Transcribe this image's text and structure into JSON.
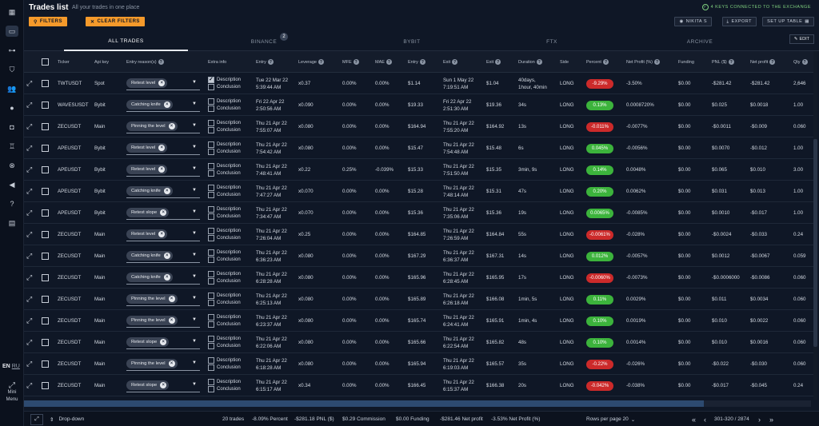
{
  "header": {
    "title": "Trades list",
    "subtitle": "All your trades in one place",
    "filters_label": "FILTERS",
    "clear_filters_label": "CLEAR FILTERS",
    "keys_status": "4 KEYS CONNECTED TO THE EXCHANGE",
    "user_label": "NIKITA S",
    "export_label": "EXPORT",
    "setup_table_label": "SET UP TABLE"
  },
  "tabs": [
    {
      "label": "ALL TRADES",
      "active": true
    },
    {
      "label": "BINANCE",
      "badge": "2"
    },
    {
      "label": "BYBIT"
    },
    {
      "label": "FTX"
    },
    {
      "label": "ARCHIVE"
    }
  ],
  "edit_label": "EDIT",
  "columns": [
    "Ticker",
    "Api key",
    "Entry reason(s)",
    "Extra info",
    "Entry",
    "Leverage",
    "MFE",
    "MAE",
    "Entry",
    "Exit",
    "Exit",
    "Duration",
    "Side",
    "Percent",
    "Net Profit (%)",
    "Funding",
    "PNL ($)",
    "Net profit",
    "Qty"
  ],
  "extra_labels": {
    "description": "Description",
    "conclusion": "Conclusion"
  },
  "rows": [
    {
      "ticker": "TWTUSDT",
      "api": "Spot",
      "reason": "Retest level",
      "desc_checked": true,
      "entry_date": "Tue 22 Mar 22",
      "entry_time": "5:39:44 AM",
      "leverage": "x0.37",
      "mfe": "0.00%",
      "mae": "0.00%",
      "entry_price": "$1.14",
      "exit_date": "Sun 1 May 22",
      "exit_time": "7:19:51 AM",
      "exit_price": "$1.04",
      "duration": "40days,",
      "duration2": "1hour, 40min",
      "side": "LONG",
      "percent": "-9.29%",
      "neg": true,
      "net_pct": "-3.50%",
      "funding": "$0.00",
      "pnl": "-$281.42",
      "net_profit": "-$281.42",
      "qty": "2,646"
    },
    {
      "ticker": "WAVESUSDT",
      "api": "Bybit",
      "reason": "Catching knife",
      "desc_checked": false,
      "entry_date": "Fri 22 Apr 22",
      "entry_time": "2:50:56 AM",
      "leverage": "x0.090",
      "mfe": "0.00%",
      "mae": "0.00%",
      "entry_price": "$19.33",
      "exit_date": "Fri 22 Apr 22",
      "exit_time": "2:51:30 AM",
      "exit_price": "$19.36",
      "duration": "34s",
      "duration2": "",
      "side": "LONG",
      "percent": "0.13%",
      "neg": false,
      "net_pct": "0.0008720%",
      "funding": "$0.00",
      "pnl": "$0.025",
      "net_profit": "$0.0018",
      "qty": "1.00"
    },
    {
      "ticker": "ZECUSDT",
      "api": "Main",
      "reason": "Pinning the level",
      "desc_checked": false,
      "entry_date": "Thu 21 Apr 22",
      "entry_time": "7:55:07 AM",
      "leverage": "x0.080",
      "mfe": "0.00%",
      "mae": "0.00%",
      "entry_price": "$164.94",
      "exit_date": "Thu 21 Apr 22",
      "exit_time": "7:55:20 AM",
      "exit_price": "$164.92",
      "duration": "13s",
      "duration2": "",
      "side": "LONG",
      "percent": "-0.011%",
      "neg": true,
      "net_pct": "-0.0077%",
      "funding": "$0.00",
      "pnl": "-$0.0011",
      "net_profit": "-$0.009",
      "qty": "0.060"
    },
    {
      "ticker": "APEUSDT",
      "api": "Bybit",
      "reason": "Retest level",
      "desc_checked": false,
      "entry_date": "Thu 21 Apr 22",
      "entry_time": "7:54:42 AM",
      "leverage": "x0.080",
      "mfe": "0.00%",
      "mae": "0.00%",
      "entry_price": "$15.47",
      "exit_date": "Thu 21 Apr 22",
      "exit_time": "7:54:48 AM",
      "exit_price": "$15.48",
      "duration": "6s",
      "duration2": "",
      "side": "LONG",
      "percent": "0.045%",
      "neg": false,
      "net_pct": "-0.0056%",
      "funding": "$0.00",
      "pnl": "$0.0070",
      "net_profit": "-$0.012",
      "qty": "1.00"
    },
    {
      "ticker": "APEUSDT",
      "api": "Bybit",
      "reason": "Retest level",
      "desc_checked": false,
      "entry_date": "Thu 21 Apr 22",
      "entry_time": "7:48:41 AM",
      "leverage": "x0.22",
      "mfe": "0.25%",
      "mae": "-0.039%",
      "entry_price": "$15.33",
      "exit_date": "Thu 21 Apr 22",
      "exit_time": "7:51:50 AM",
      "exit_price": "$15.35",
      "duration": "3min, 9s",
      "duration2": "",
      "side": "LONG",
      "percent": "0.14%",
      "neg": false,
      "net_pct": "0.0048%",
      "funding": "$0.00",
      "pnl": "$0.065",
      "net_profit": "$0.010",
      "qty": "3.00"
    },
    {
      "ticker": "APEUSDT",
      "api": "Bybit",
      "reason": "Catching knife",
      "desc_checked": false,
      "entry_date": "Thu 21 Apr 22",
      "entry_time": "7:47:27 AM",
      "leverage": "x0.070",
      "mfe": "0.00%",
      "mae": "0.00%",
      "entry_price": "$15.28",
      "exit_date": "Thu 21 Apr 22",
      "exit_time": "7:48:14 AM",
      "exit_price": "$15.31",
      "duration": "47s",
      "duration2": "",
      "side": "LONG",
      "percent": "0.20%",
      "neg": false,
      "net_pct": "0.0062%",
      "funding": "$0.00",
      "pnl": "$0.031",
      "net_profit": "$0.013",
      "qty": "1.00"
    },
    {
      "ticker": "APEUSDT",
      "api": "Bybit",
      "reason": "Retest slope",
      "desc_checked": false,
      "entry_date": "Thu 21 Apr 22",
      "entry_time": "7:34:47 AM",
      "leverage": "x0.070",
      "mfe": "0.00%",
      "mae": "0.00%",
      "entry_price": "$15.36",
      "exit_date": "Thu 21 Apr 22",
      "exit_time": "7:35:06 AM",
      "exit_price": "$15.36",
      "duration": "19s",
      "duration2": "",
      "side": "LONG",
      "percent": "0.0065%",
      "neg": false,
      "net_pct": "-0.0085%",
      "funding": "$0.00",
      "pnl": "$0.0010",
      "net_profit": "-$0.017",
      "qty": "1.00"
    },
    {
      "ticker": "ZECUSDT",
      "api": "Main",
      "reason": "Retest level",
      "desc_checked": false,
      "entry_date": "Thu 21 Apr 22",
      "entry_time": "7:26:04 AM",
      "leverage": "x0.25",
      "mfe": "0.00%",
      "mae": "0.00%",
      "entry_price": "$164.85",
      "exit_date": "Thu 21 Apr 22",
      "exit_time": "7:26:59 AM",
      "exit_price": "$164.84",
      "duration": "55s",
      "duration2": "",
      "side": "LONG",
      "percent": "-0.0061%",
      "neg": true,
      "net_pct": "-0.028%",
      "funding": "$0.00",
      "pnl": "-$0.0024",
      "net_profit": "-$0.033",
      "qty": "0.24"
    },
    {
      "ticker": "ZECUSDT",
      "api": "Main",
      "reason": "Catching knife",
      "desc_checked": false,
      "entry_date": "Thu 21 Apr 22",
      "entry_time": "6:36:23 AM",
      "leverage": "x0.080",
      "mfe": "0.00%",
      "mae": "0.00%",
      "entry_price": "$167.29",
      "exit_date": "Thu 21 Apr 22",
      "exit_time": "6:36:37 AM",
      "exit_price": "$167.31",
      "duration": "14s",
      "duration2": "",
      "side": "LONG",
      "percent": "0.012%",
      "neg": false,
      "net_pct": "-0.0057%",
      "funding": "$0.00",
      "pnl": "$0.0012",
      "net_profit": "-$0.0067",
      "qty": "0.059"
    },
    {
      "ticker": "ZECUSDT",
      "api": "Main",
      "reason": "Catching knife",
      "desc_checked": false,
      "entry_date": "Thu 21 Apr 22",
      "entry_time": "6:28:28 AM",
      "leverage": "x0.080",
      "mfe": "0.00%",
      "mae": "0.00%",
      "entry_price": "$165.96",
      "exit_date": "Thu 21 Apr 22",
      "exit_time": "6:28:45 AM",
      "exit_price": "$165.95",
      "duration": "17s",
      "duration2": "",
      "side": "LONG",
      "percent": "-0.0060%",
      "neg": true,
      "net_pct": "-0.0073%",
      "funding": "$0.00",
      "pnl": "-$0.0006000",
      "net_profit": "-$0.0086",
      "qty": "0.060"
    },
    {
      "ticker": "ZECUSDT",
      "api": "Main",
      "reason": "Pinning the level",
      "desc_checked": false,
      "entry_date": "Thu 21 Apr 22",
      "entry_time": "6:25:13 AM",
      "leverage": "x0.080",
      "mfe": "0.00%",
      "mae": "0.00%",
      "entry_price": "$165.89",
      "exit_date": "Thu 21 Apr 22",
      "exit_time": "6:26:18 AM",
      "exit_price": "$166.08",
      "duration": "1min, 5s",
      "duration2": "",
      "side": "LONG",
      "percent": "0.11%",
      "neg": false,
      "net_pct": "0.0029%",
      "funding": "$0.00",
      "pnl": "$0.011",
      "net_profit": "$0.0034",
      "qty": "0.060"
    },
    {
      "ticker": "ZECUSDT",
      "api": "Main",
      "reason": "Pinning the level",
      "desc_checked": false,
      "entry_date": "Thu 21 Apr 22",
      "entry_time": "6:23:37 AM",
      "leverage": "x0.080",
      "mfe": "0.00%",
      "mae": "0.00%",
      "entry_price": "$165.74",
      "exit_date": "Thu 21 Apr 22",
      "exit_time": "6:24:41 AM",
      "exit_price": "$165.91",
      "duration": "1min, 4s",
      "duration2": "",
      "side": "LONG",
      "percent": "0.10%",
      "neg": false,
      "net_pct": "0.0019%",
      "funding": "$0.00",
      "pnl": "$0.010",
      "net_profit": "$0.0022",
      "qty": "0.060"
    },
    {
      "ticker": "ZECUSDT",
      "api": "Main",
      "reason": "Retest slope",
      "desc_checked": false,
      "entry_date": "Thu 21 Apr 22",
      "entry_time": "6:22:06 AM",
      "leverage": "x0.080",
      "mfe": "0.00%",
      "mae": "0.00%",
      "entry_price": "$165.66",
      "exit_date": "Thu 21 Apr 22",
      "exit_time": "6:22:54 AM",
      "exit_price": "$165.82",
      "duration": "48s",
      "duration2": "",
      "side": "LONG",
      "percent": "0.10%",
      "neg": false,
      "net_pct": "0.0014%",
      "funding": "$0.00",
      "pnl": "$0.010",
      "net_profit": "$0.0016",
      "qty": "0.060"
    },
    {
      "ticker": "ZECUSDT",
      "api": "Main",
      "reason": "Pinning the level",
      "desc_checked": false,
      "entry_date": "Thu 21 Apr 22",
      "entry_time": "6:18:28 AM",
      "leverage": "x0.080",
      "mfe": "0.00%",
      "mae": "0.00%",
      "entry_price": "$165.94",
      "exit_date": "Thu 21 Apr 22",
      "exit_time": "6:19:03 AM",
      "exit_price": "$165.57",
      "duration": "35s",
      "duration2": "",
      "side": "LONG",
      "percent": "-0.22%",
      "neg": true,
      "net_pct": "-0.026%",
      "funding": "$0.00",
      "pnl": "-$0.022",
      "net_profit": "-$0.030",
      "qty": "0.060"
    },
    {
      "ticker": "ZECUSDT",
      "api": "Main",
      "reason": "Retest slope",
      "desc_checked": false,
      "entry_date": "Thu 21 Apr 22",
      "entry_time": "6:15:17 AM",
      "leverage": "x0.34",
      "mfe": "0.00%",
      "mae": "0.00%",
      "entry_price": "$166.45",
      "exit_date": "Thu 21 Apr 22",
      "exit_time": "6:15:37 AM",
      "exit_price": "$166.38",
      "duration": "20s",
      "duration2": "",
      "side": "LONG",
      "percent": "-0.042%",
      "neg": true,
      "net_pct": "-0.038%",
      "funding": "$0.00",
      "pnl": "-$0.017",
      "net_profit": "-$0.045",
      "qty": "0.24"
    }
  ],
  "sidebar": {
    "lang_en": "EN",
    "lang_ru": "RU",
    "mini_menu_line1": "Mini",
    "mini_menu_line2": "Menu"
  },
  "footer": {
    "dropdown_label": "Drop-down",
    "trades_count": "20 trades",
    "percent": "-8.09% Percent",
    "pnl": "-$281.18 PNL ($)",
    "commission": "$0.29 Commission",
    "funding": "$0.00 Funding",
    "net_profit": "-$281.46 Net profit",
    "net_profit_pct": "-3.53% Net Profit (%)",
    "rows_per_page": "Rows per page 20",
    "pagination": "301-320 / 2874"
  },
  "colors": {
    "accent": "#f59a2b",
    "negative": "#cc2a2a",
    "positive": "#3cb33c",
    "background": "#0f1726"
  }
}
